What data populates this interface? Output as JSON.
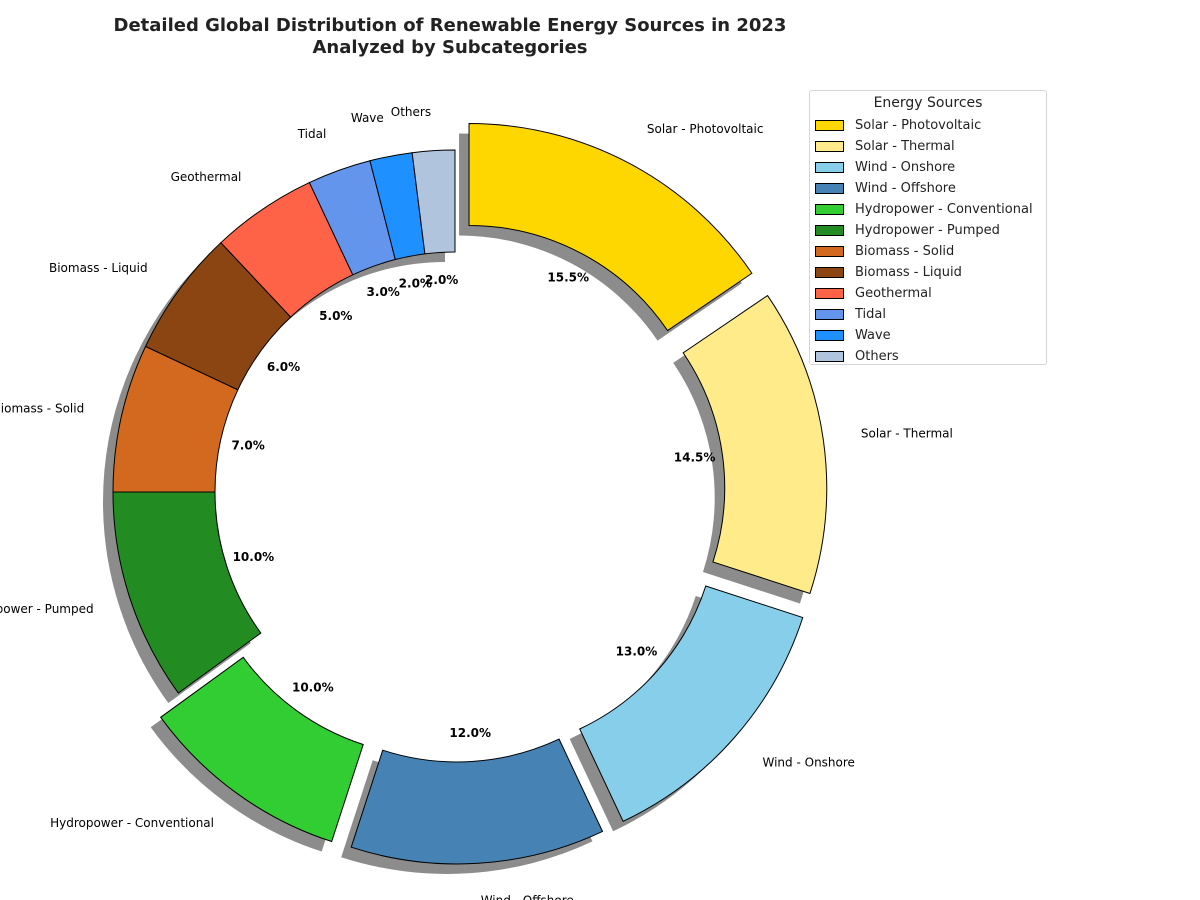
{
  "chart_data": {
    "type": "pie",
    "variant": "donut-exploded-with-shadow",
    "title_lines": [
      "Detailed Global Distribution of Renewable Energy Sources in 2023",
      "Analyzed by Subcategories"
    ],
    "legend": {
      "title": "Energy Sources",
      "placement": "top-right"
    },
    "labels": [
      "Solar - Photovoltaic",
      "Solar - Thermal",
      "Wind - Onshore",
      "Wind - Offshore",
      "Hydropower - Conventional",
      "Hydropower - Pumped",
      "Biomass - Solid",
      "Biomass - Liquid",
      "Geothermal",
      "Tidal",
      "Wave",
      "Others"
    ],
    "values": [
      15.5,
      14.5,
      13.0,
      12.0,
      10.0,
      10.0,
      7.0,
      6.0,
      5.0,
      3.0,
      2.0,
      2.0
    ],
    "value_labels": [
      "15.5%",
      "14.5%",
      "13.0%",
      "12.0%",
      "10.0%",
      "10.0%",
      "7.0%",
      "6.0%",
      "5.0%",
      "3.0%",
      "2.0%",
      "2.0%"
    ],
    "colors": [
      "#FFD700",
      "#FFEB8A",
      "#87CEEB",
      "#4682B4",
      "#32CD32",
      "#228B22",
      "#D2691E",
      "#8B4513",
      "#FF6347",
      "#6495ED",
      "#1E90FF",
      "#B0C4DE"
    ],
    "exploded": [
      true,
      true,
      true,
      true,
      true,
      false,
      false,
      false,
      false,
      false,
      false,
      false
    ],
    "start_angle": 90,
    "direction": "clockwise",
    "shadow": true
  }
}
